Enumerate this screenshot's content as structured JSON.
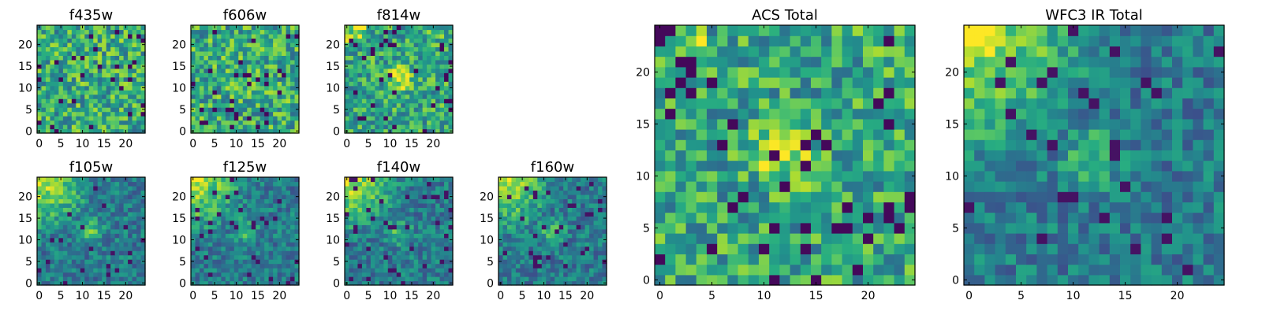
{
  "chart_data": [
    {
      "type": "heatmap",
      "title": "f435w",
      "xticks": [
        "0",
        "5",
        "10",
        "15",
        "20"
      ],
      "yticks": [
        "0",
        "5",
        "10",
        "15",
        "20"
      ],
      "grid_size": 25,
      "pattern": "noisy-flat",
      "colormap": "viridis",
      "grid": false
    },
    {
      "type": "heatmap",
      "title": "f606w",
      "xticks": [
        "0",
        "5",
        "10",
        "15",
        "20"
      ],
      "yticks": [
        "0",
        "5",
        "10",
        "15",
        "20"
      ],
      "grid_size": 25,
      "pattern": "noisy-flat",
      "colormap": "viridis",
      "grid": false
    },
    {
      "type": "heatmap",
      "title": "f814w",
      "xticks": [
        "0",
        "5",
        "10",
        "15",
        "20"
      ],
      "yticks": [
        "0",
        "5",
        "10",
        "15",
        "20"
      ],
      "grid_size": 25,
      "pattern": "noisy-center-peak",
      "colormap": "viridis",
      "grid": false
    },
    {
      "type": "heatmap",
      "title": "f105w",
      "xticks": [
        "0",
        "5",
        "10",
        "15",
        "20"
      ],
      "yticks": [
        "0",
        "5",
        "10",
        "15",
        "20"
      ],
      "grid_size": 25,
      "pattern": "gradient-top-left",
      "colormap": "viridis",
      "grid": false
    },
    {
      "type": "heatmap",
      "title": "f125w",
      "xticks": [
        "0",
        "5",
        "10",
        "15",
        "20"
      ],
      "yticks": [
        "0",
        "5",
        "10",
        "15",
        "20"
      ],
      "grid_size": 25,
      "pattern": "gradient-top-left",
      "colormap": "viridis",
      "grid": false
    },
    {
      "type": "heatmap",
      "title": "f140w",
      "xticks": [
        "0",
        "5",
        "10",
        "15",
        "20"
      ],
      "yticks": [
        "0",
        "5",
        "10",
        "15",
        "20"
      ],
      "grid_size": 25,
      "pattern": "gradient-top-left",
      "colormap": "viridis",
      "grid": false
    },
    {
      "type": "heatmap",
      "title": "f160w",
      "xticks": [
        "0",
        "5",
        "10",
        "15",
        "20"
      ],
      "yticks": [
        "0",
        "5",
        "10",
        "15",
        "20"
      ],
      "grid_size": 25,
      "pattern": "gradient-top-left",
      "colormap": "viridis",
      "grid": false
    },
    {
      "type": "heatmap",
      "title": "ACS Total",
      "xticks": [
        "0",
        "5",
        "10",
        "15",
        "20"
      ],
      "yticks": [
        "0",
        "5",
        "10",
        "15",
        "20"
      ],
      "grid_size": 25,
      "pattern": "noisy-center-peak",
      "colormap": "viridis",
      "grid": false
    },
    {
      "type": "heatmap",
      "title": "WFC3 IR Total",
      "xticks": [
        "0",
        "5",
        "10",
        "15",
        "20"
      ],
      "yticks": [
        "0",
        "5",
        "10",
        "15",
        "20"
      ],
      "grid_size": 25,
      "pattern": "gradient-top-left",
      "colormap": "viridis",
      "grid": false
    }
  ]
}
